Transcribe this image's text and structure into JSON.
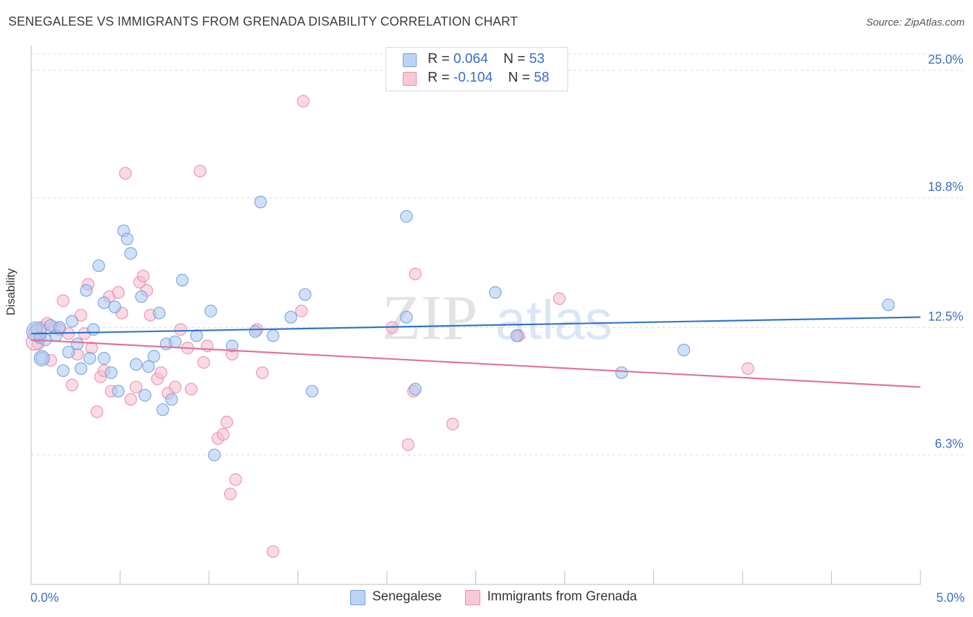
{
  "title": "SENEGALESE VS IMMIGRANTS FROM GRENADA DISABILITY CORRELATION CHART",
  "source": "Source: ZipAtlas.com",
  "watermark": {
    "zip": "ZIP",
    "atlas": "atlas"
  },
  "legend_top": {
    "rows": [
      {
        "r_label": "R = ",
        "r_value": "0.064",
        "n_label": "N = ",
        "n_value": "53"
      },
      {
        "r_label": "R = ",
        "r_value": "-0.104",
        "n_label": "N = ",
        "n_value": "58"
      }
    ]
  },
  "legend_bottom": {
    "series_a": "Senegalese",
    "series_b": "Immigrants from Grenada"
  },
  "colors": {
    "blue_fill": "#aac8f0",
    "blue_stroke": "#6f9fdc",
    "blue_line": "#2f72c9",
    "pink_fill": "#f6bcd0",
    "pink_stroke": "#ea8cab",
    "pink_line": "#e0719a",
    "axis_label": "#3a6fc9",
    "grid": "#dcdcdc"
  },
  "chart_data": {
    "type": "scatter",
    "title": "SENEGALESE VS IMMIGRANTS FROM GRENADA DISABILITY CORRELATION CHART",
    "xlabel": "",
    "ylabel": "Disability",
    "xlim": [
      0,
      5.0
    ],
    "ylim": [
      0,
      25.8
    ],
    "x_tick_labels": [
      "0.0%",
      "5.0%"
    ],
    "y_ticks": [
      6.3,
      12.5,
      18.8,
      25.0
    ],
    "y_tick_labels": [
      "6.3%",
      "12.5%",
      "18.8%",
      "25.0%"
    ],
    "grid": true,
    "legend": "bottom",
    "series": [
      {
        "name": "Senegalese",
        "color": "#6f9fdc",
        "trend": {
          "x": [
            0.0,
            5.0
          ],
          "y": [
            12.2,
            13.0
          ]
        },
        "points": [
          {
            "x": 0.03,
            "y": 12.4
          },
          {
            "x": 0.05,
            "y": 12.0
          },
          {
            "x": 0.06,
            "y": 11.0
          },
          {
            "x": 0.08,
            "y": 11.9
          },
          {
            "x": 0.11,
            "y": 12.6
          },
          {
            "x": 0.14,
            "y": 12.1
          },
          {
            "x": 0.16,
            "y": 12.5
          },
          {
            "x": 0.18,
            "y": 10.4
          },
          {
            "x": 0.21,
            "y": 11.3
          },
          {
            "x": 0.23,
            "y": 12.8
          },
          {
            "x": 0.26,
            "y": 11.7
          },
          {
            "x": 0.28,
            "y": 10.5
          },
          {
            "x": 0.31,
            "y": 14.3
          },
          {
            "x": 0.33,
            "y": 11.0
          },
          {
            "x": 0.35,
            "y": 12.4
          },
          {
            "x": 0.38,
            "y": 15.5
          },
          {
            "x": 0.41,
            "y": 13.7
          },
          {
            "x": 0.41,
            "y": 11.0
          },
          {
            "x": 0.45,
            "y": 10.3
          },
          {
            "x": 0.47,
            "y": 13.5
          },
          {
            "x": 0.49,
            "y": 9.4
          },
          {
            "x": 0.52,
            "y": 17.2
          },
          {
            "x": 0.54,
            "y": 16.8
          },
          {
            "x": 0.56,
            "y": 16.1
          },
          {
            "x": 0.59,
            "y": 10.7
          },
          {
            "x": 0.62,
            "y": 14.0
          },
          {
            "x": 0.64,
            "y": 9.2
          },
          {
            "x": 0.66,
            "y": 10.6
          },
          {
            "x": 0.69,
            "y": 11.1
          },
          {
            "x": 0.72,
            "y": 13.2
          },
          {
            "x": 0.74,
            "y": 8.5
          },
          {
            "x": 0.76,
            "y": 11.7
          },
          {
            "x": 0.79,
            "y": 9.0
          },
          {
            "x": 0.81,
            "y": 11.8
          },
          {
            "x": 0.85,
            "y": 14.8
          },
          {
            "x": 0.93,
            "y": 12.1
          },
          {
            "x": 1.01,
            "y": 13.3
          },
          {
            "x": 1.03,
            "y": 6.3
          },
          {
            "x": 1.13,
            "y": 11.6
          },
          {
            "x": 1.26,
            "y": 12.3
          },
          {
            "x": 1.29,
            "y": 18.6
          },
          {
            "x": 1.36,
            "y": 12.1
          },
          {
            "x": 1.46,
            "y": 13.0
          },
          {
            "x": 1.54,
            "y": 14.1
          },
          {
            "x": 1.58,
            "y": 9.4
          },
          {
            "x": 2.11,
            "y": 13.0
          },
          {
            "x": 2.11,
            "y": 17.9
          },
          {
            "x": 2.16,
            "y": 9.5
          },
          {
            "x": 2.61,
            "y": 14.2
          },
          {
            "x": 2.73,
            "y": 12.1
          },
          {
            "x": 3.32,
            "y": 10.3
          },
          {
            "x": 3.67,
            "y": 11.4
          },
          {
            "x": 4.82,
            "y": 13.6
          }
        ]
      },
      {
        "name": "Immigrants from Grenada",
        "color": "#ea8cab",
        "trend": {
          "x": [
            0.0,
            5.0
          ],
          "y": [
            11.9,
            9.6
          ]
        },
        "points": [
          {
            "x": 0.02,
            "y": 12.3
          },
          {
            "x": 0.04,
            "y": 11.7
          },
          {
            "x": 0.06,
            "y": 12.5
          },
          {
            "x": 0.09,
            "y": 12.7
          },
          {
            "x": 0.11,
            "y": 10.9
          },
          {
            "x": 0.13,
            "y": 12.5
          },
          {
            "x": 0.16,
            "y": 12.4
          },
          {
            "x": 0.18,
            "y": 13.8
          },
          {
            "x": 0.21,
            "y": 12.2
          },
          {
            "x": 0.23,
            "y": 9.7
          },
          {
            "x": 0.26,
            "y": 11.2
          },
          {
            "x": 0.28,
            "y": 13.1
          },
          {
            "x": 0.3,
            "y": 12.2
          },
          {
            "x": 0.32,
            "y": 14.6
          },
          {
            "x": 0.34,
            "y": 11.5
          },
          {
            "x": 0.37,
            "y": 8.4
          },
          {
            "x": 0.39,
            "y": 10.1
          },
          {
            "x": 0.41,
            "y": 10.4
          },
          {
            "x": 0.44,
            "y": 14.0
          },
          {
            "x": 0.45,
            "y": 9.4
          },
          {
            "x": 0.49,
            "y": 14.2
          },
          {
            "x": 0.51,
            "y": 13.2
          },
          {
            "x": 0.53,
            "y": 20.0
          },
          {
            "x": 0.56,
            "y": 9.0
          },
          {
            "x": 0.59,
            "y": 9.6
          },
          {
            "x": 0.61,
            "y": 14.7
          },
          {
            "x": 0.63,
            "y": 15.0
          },
          {
            "x": 0.65,
            "y": 14.3
          },
          {
            "x": 0.67,
            "y": 13.1
          },
          {
            "x": 0.71,
            "y": 10.0
          },
          {
            "x": 0.73,
            "y": 10.3
          },
          {
            "x": 0.77,
            "y": 9.3
          },
          {
            "x": 0.81,
            "y": 9.6
          },
          {
            "x": 0.84,
            "y": 12.4
          },
          {
            "x": 0.88,
            "y": 11.5
          },
          {
            "x": 0.9,
            "y": 9.5
          },
          {
            "x": 0.95,
            "y": 20.1
          },
          {
            "x": 0.97,
            "y": 10.8
          },
          {
            "x": 0.99,
            "y": 11.6
          },
          {
            "x": 1.05,
            "y": 7.1
          },
          {
            "x": 1.08,
            "y": 7.3
          },
          {
            "x": 1.1,
            "y": 7.9
          },
          {
            "x": 1.12,
            "y": 4.4
          },
          {
            "x": 1.15,
            "y": 5.1
          },
          {
            "x": 1.27,
            "y": 12.4
          },
          {
            "x": 1.3,
            "y": 10.3
          },
          {
            "x": 1.36,
            "y": 1.6
          },
          {
            "x": 1.52,
            "y": 13.3
          },
          {
            "x": 1.53,
            "y": 23.5
          },
          {
            "x": 2.03,
            "y": 12.5
          },
          {
            "x": 2.12,
            "y": 6.8
          },
          {
            "x": 2.15,
            "y": 9.4
          },
          {
            "x": 2.16,
            "y": 15.1
          },
          {
            "x": 2.37,
            "y": 7.8
          },
          {
            "x": 2.74,
            "y": 12.1
          },
          {
            "x": 2.97,
            "y": 13.9
          },
          {
            "x": 4.03,
            "y": 10.5
          },
          {
            "x": 1.13,
            "y": 11.2
          }
        ]
      }
    ]
  }
}
